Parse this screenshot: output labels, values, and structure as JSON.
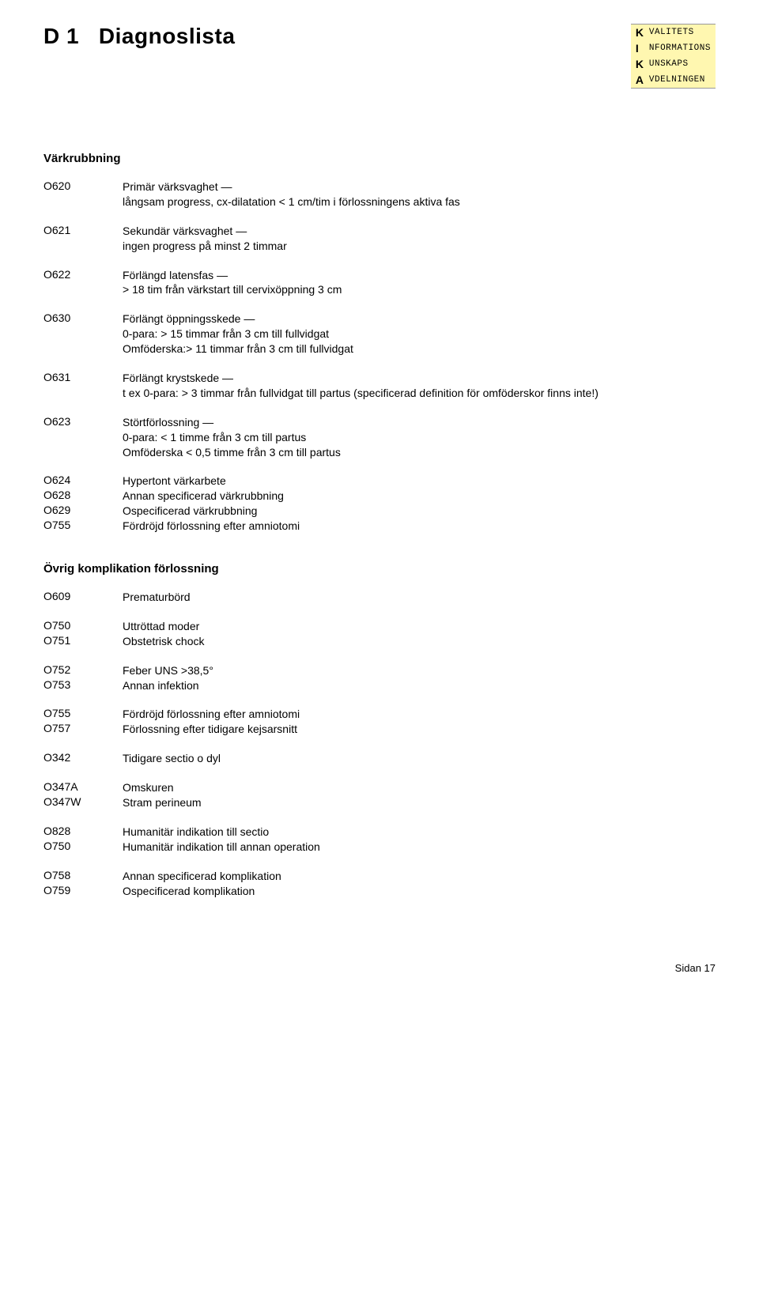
{
  "header": {
    "title_code": "D 1",
    "title_text": "Diagnoslista"
  },
  "kika": [
    {
      "letter": "K",
      "word": "VALITETS"
    },
    {
      "letter": "I",
      "word": "NFORMATIONS"
    },
    {
      "letter": "K",
      "word": "UNSKAPS"
    },
    {
      "letter": "A",
      "word": "VDELNINGEN"
    }
  ],
  "section1": {
    "title": "Värkrubbning",
    "entries": [
      {
        "code": "O620",
        "lines": [
          "Primär värksvaghet —",
          "långsam progress, cx-dilatation < 1 cm/tim i förlossningens aktiva fas"
        ]
      },
      {
        "code": "O621",
        "lines": [
          "Sekundär värksvaghet —",
          "ingen progress på minst 2 timmar"
        ]
      },
      {
        "code": "O622",
        "lines": [
          "Förlängd latensfas —",
          "> 18 tim från värkstart till cervixöppning 3 cm"
        ]
      },
      {
        "code": "O630",
        "lines": [
          "Förlängt öppningsskede —",
          "0-para: > 15 timmar från 3 cm till fullvidgat",
          "Omföderska:> 11 timmar från 3 cm till fullvidgat"
        ]
      },
      {
        "code": "O631",
        "lines": [
          "Förlängt krystskede —",
          "t ex 0-para: > 3 timmar från fullvidgat till partus (specificerad definition för omföderskor finns inte!)"
        ]
      },
      {
        "code": "O623",
        "lines": [
          "Störtförlossning —",
          "0-para: < 1 timme från 3 cm till partus",
          "Omföderska < 0,5 timme från 3 cm till partus"
        ]
      }
    ],
    "tight": [
      {
        "code": "O624",
        "desc": "Hypertont värkarbete"
      },
      {
        "code": "O628",
        "desc": "Annan specificerad värkrubbning"
      },
      {
        "code": "O629",
        "desc": "Ospecificerad värkrubbning"
      },
      {
        "code": "O755",
        "desc": "Fördröjd förlossning efter amniotomi"
      }
    ]
  },
  "section2": {
    "title": "Övrig komplikation förlossning",
    "groups": [
      [
        {
          "code": "O609",
          "desc": "Prematurbörd"
        }
      ],
      [
        {
          "code": "O750",
          "desc": "Uttröttad moder"
        },
        {
          "code": "O751",
          "desc": "Obstetrisk chock"
        }
      ],
      [
        {
          "code": "O752",
          "desc": "Feber UNS >38,5°"
        },
        {
          "code": "O753",
          "desc": "Annan infektion"
        }
      ],
      [
        {
          "code": "O755",
          "desc": "Fördröjd förlossning efter amniotomi"
        },
        {
          "code": "O757",
          "desc": "Förlossning efter tidigare kejsarsnitt"
        }
      ],
      [
        {
          "code": "O342",
          "desc": "Tidigare sectio o dyl"
        }
      ],
      [
        {
          "code": "O347A",
          "desc": "Omskuren"
        },
        {
          "code": "O347W",
          "desc": "Stram perineum"
        }
      ],
      [
        {
          "code": "O828",
          "desc": "Humanitär indikation till sectio"
        },
        {
          "code": "O750",
          "desc": "Humanitär indikation till annan operation"
        }
      ],
      [
        {
          "code": "O758",
          "desc": "Annan specificerad komplikation"
        },
        {
          "code": "O759",
          "desc": "Ospecificerad komplikation"
        }
      ]
    ]
  },
  "footer": "Sidan 17"
}
